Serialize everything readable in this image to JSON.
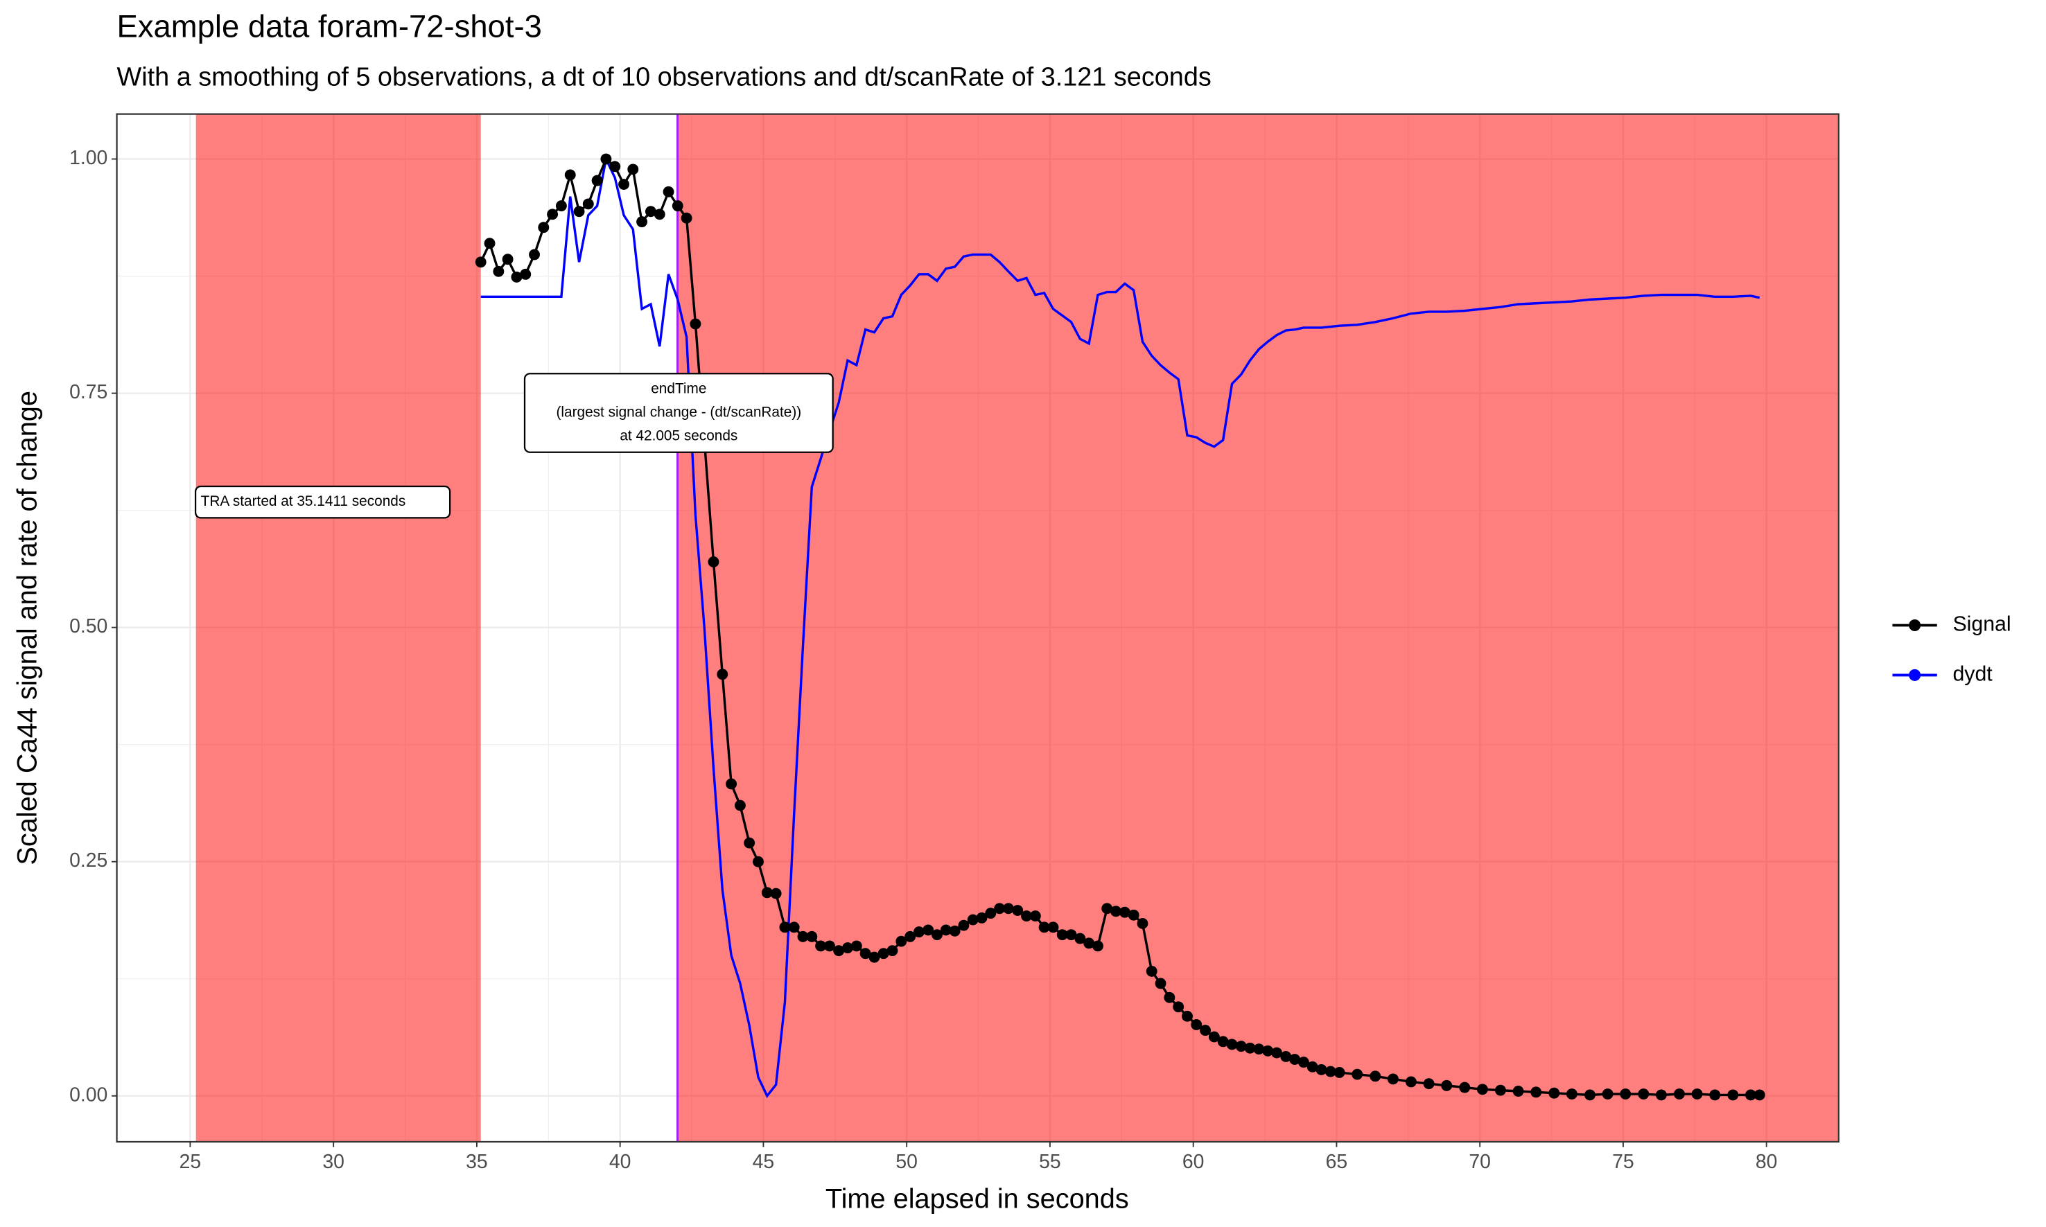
{
  "chart_data": {
    "type": "line",
    "title": "Example data foram-72-shot-3",
    "subtitle": "With a smoothing of 5 observations, a dt of 10 observations and dt/scanRate of 3.121 seconds",
    "x_label": "Time elapsed in seconds",
    "y_label": "Scaled Ca44 signal and rate of change",
    "x": [
      35.14,
      35.45,
      35.76,
      36.08,
      36.39,
      36.7,
      37.01,
      37.33,
      37.64,
      37.95,
      38.26,
      38.57,
      38.89,
      39.2,
      39.51,
      39.82,
      40.13,
      40.45,
      40.76,
      41.07,
      41.38,
      41.69,
      42.01,
      42.32,
      42.63,
      42.94,
      43.26,
      43.57,
      43.88,
      44.19,
      44.51,
      44.82,
      45.13,
      45.44,
      45.75,
      46.07,
      46.38,
      46.69,
      47.0,
      47.31,
      47.63,
      47.94,
      48.25,
      48.56,
      48.87,
      49.19,
      49.5,
      49.81,
      50.12,
      50.43,
      50.75,
      51.06,
      51.37,
      51.68,
      51.99,
      52.31,
      52.62,
      52.93,
      53.24,
      53.55,
      53.87,
      54.18,
      54.49,
      54.8,
      55.11,
      55.43,
      55.74,
      56.05,
      56.36,
      56.67,
      56.99,
      57.3,
      57.61,
      57.92,
      58.23,
      58.55,
      58.86,
      59.17,
      59.48,
      59.79,
      60.11,
      60.42,
      60.73,
      61.04,
      61.35,
      61.67,
      61.98,
      62.29,
      62.6,
      62.91,
      63.23,
      63.54,
      63.85,
      64.16,
      64.47,
      64.79,
      65.1,
      65.72,
      66.35,
      66.97,
      67.6,
      68.22,
      68.84,
      69.47,
      70.09,
      70.72,
      71.34,
      71.96,
      72.59,
      73.21,
      73.84,
      74.46,
      75.08,
      75.71,
      76.33,
      76.96,
      77.58,
      78.2,
      78.83,
      79.45,
      79.76
    ],
    "series": [
      {
        "name": "Signal",
        "color": "#000000",
        "markers": true,
        "values": [
          0.89,
          0.91,
          0.88,
          0.893,
          0.874,
          0.877,
          0.898,
          0.927,
          0.941,
          0.95,
          0.983,
          0.944,
          0.952,
          0.977,
          1.0,
          0.992,
          0.973,
          0.989,
          0.933,
          0.944,
          0.941,
          0.965,
          0.95,
          0.937,
          0.824,
          0.7,
          0.57,
          0.45,
          0.333,
          0.31,
          0.27,
          0.25,
          0.217,
          0.216,
          0.18,
          0.18,
          0.17,
          0.17,
          0.16,
          0.16,
          0.155,
          0.158,
          0.16,
          0.152,
          0.148,
          0.152,
          0.155,
          0.165,
          0.17,
          0.175,
          0.177,
          0.172,
          0.177,
          0.176,
          0.182,
          0.188,
          0.19,
          0.195,
          0.2,
          0.2,
          0.198,
          0.192,
          0.192,
          0.18,
          0.18,
          0.172,
          0.172,
          0.168,
          0.163,
          0.16,
          0.2,
          0.197,
          0.196,
          0.193,
          0.184,
          0.133,
          0.12,
          0.105,
          0.095,
          0.085,
          0.076,
          0.07,
          0.063,
          0.058,
          0.055,
          0.053,
          0.051,
          0.05,
          0.048,
          0.046,
          0.042,
          0.039,
          0.036,
          0.031,
          0.028,
          0.026,
          0.025,
          0.023,
          0.021,
          0.018,
          0.015,
          0.013,
          0.011,
          0.009,
          0.007,
          0.006,
          0.005,
          0.004,
          0.003,
          0.002,
          0.001,
          0.002,
          0.002,
          0.002,
          0.001,
          0.002,
          0.002,
          0.001,
          0.001,
          0.001,
          0.001
        ]
      },
      {
        "name": "dydt",
        "color": "#0000ff",
        "markers": false,
        "values": [
          0.853,
          0.853,
          0.853,
          0.853,
          0.853,
          0.853,
          0.853,
          0.853,
          0.853,
          0.853,
          0.96,
          0.89,
          0.94,
          0.95,
          1.0,
          0.98,
          0.94,
          0.925,
          0.84,
          0.845,
          0.8,
          0.877,
          0.85,
          0.81,
          0.62,
          0.5,
          0.35,
          0.22,
          0.15,
          0.12,
          0.075,
          0.02,
          0.0,
          0.012,
          0.1,
          0.3,
          0.48,
          0.65,
          0.68,
          0.71,
          0.74,
          0.785,
          0.78,
          0.818,
          0.815,
          0.83,
          0.832,
          0.855,
          0.865,
          0.877,
          0.877,
          0.87,
          0.883,
          0.885,
          0.896,
          0.898,
          0.898,
          0.898,
          0.89,
          0.88,
          0.87,
          0.873,
          0.855,
          0.857,
          0.84,
          0.833,
          0.826,
          0.808,
          0.803,
          0.855,
          0.858,
          0.858,
          0.867,
          0.86,
          0.805,
          0.79,
          0.78,
          0.772,
          0.765,
          0.705,
          0.703,
          0.697,
          0.693,
          0.7,
          0.76,
          0.77,
          0.785,
          0.797,
          0.805,
          0.812,
          0.817,
          0.818,
          0.82,
          0.82,
          0.82,
          0.821,
          0.822,
          0.823,
          0.826,
          0.83,
          0.835,
          0.837,
          0.837,
          0.838,
          0.84,
          0.842,
          0.845,
          0.846,
          0.847,
          0.848,
          0.85,
          0.851,
          0.852,
          0.854,
          0.855,
          0.855,
          0.855,
          0.853,
          0.853,
          0.854,
          0.852
        ]
      }
    ],
    "shaded_regions": [
      [
        25.2,
        35.1411
      ],
      [
        42.005,
        82.52
      ]
    ],
    "shade_color": "#ff0000",
    "vline": 42.005,
    "vline_color": "#a020f0",
    "annotations": [
      {
        "lines": [
          "TRA started at 35.1411 seconds"
        ]
      },
      {
        "lines": [
          "endTime",
          "(largest signal change - (dt/scanRate))",
          "at 42.005 seconds"
        ]
      }
    ],
    "xlim": [
      22.44,
      82.52
    ],
    "ylim": [
      -0.049,
      1.048
    ],
    "xticks": [
      25,
      30,
      35,
      40,
      45,
      50,
      55,
      60,
      65,
      70,
      75,
      80
    ],
    "yticks": [
      {
        "value": 0,
        "label": "0.00"
      },
      {
        "value": 0.25,
        "label": "0.25"
      },
      {
        "value": 0.5,
        "label": "0.50"
      },
      {
        "value": 0.75,
        "label": "0.75"
      },
      {
        "value": 1,
        "label": "1.00"
      }
    ],
    "grid": true,
    "legend": "right"
  }
}
